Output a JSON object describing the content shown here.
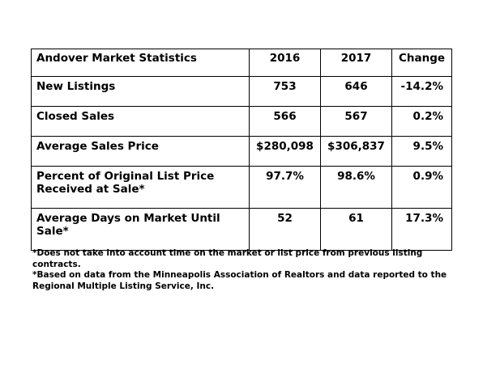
{
  "table": {
    "header": {
      "title": "Andover Market Statistics",
      "col1": "2016",
      "col2": "2017",
      "col3": "Change"
    },
    "rows": [
      {
        "label": "New Listings",
        "v2016": "753",
        "v2017": "646",
        "change": "-14.2%"
      },
      {
        "label": "Closed Sales",
        "v2016": "566",
        "v2017": "567",
        "change": "0.2%"
      },
      {
        "label": "Average Sales Price",
        "v2016": "$280,098",
        "v2017": "$306,837",
        "change": "9.5%"
      },
      {
        "label": "Percent of Original List Price Received at Sale*",
        "v2016": "97.7%",
        "v2017": "98.6%",
        "change": "0.9%"
      },
      {
        "label": "Average Days on Market Until Sale*",
        "v2016": "52",
        "v2017": "61",
        "change": "17.3%"
      }
    ]
  },
  "footnotes": [
    "*Does not take into account time on the market or list price from previous listing contracts.",
    "*Based on data from the Minneapolis Association of Realtors and data reported to the Regional Multiple Listing Service, Inc."
  ]
}
